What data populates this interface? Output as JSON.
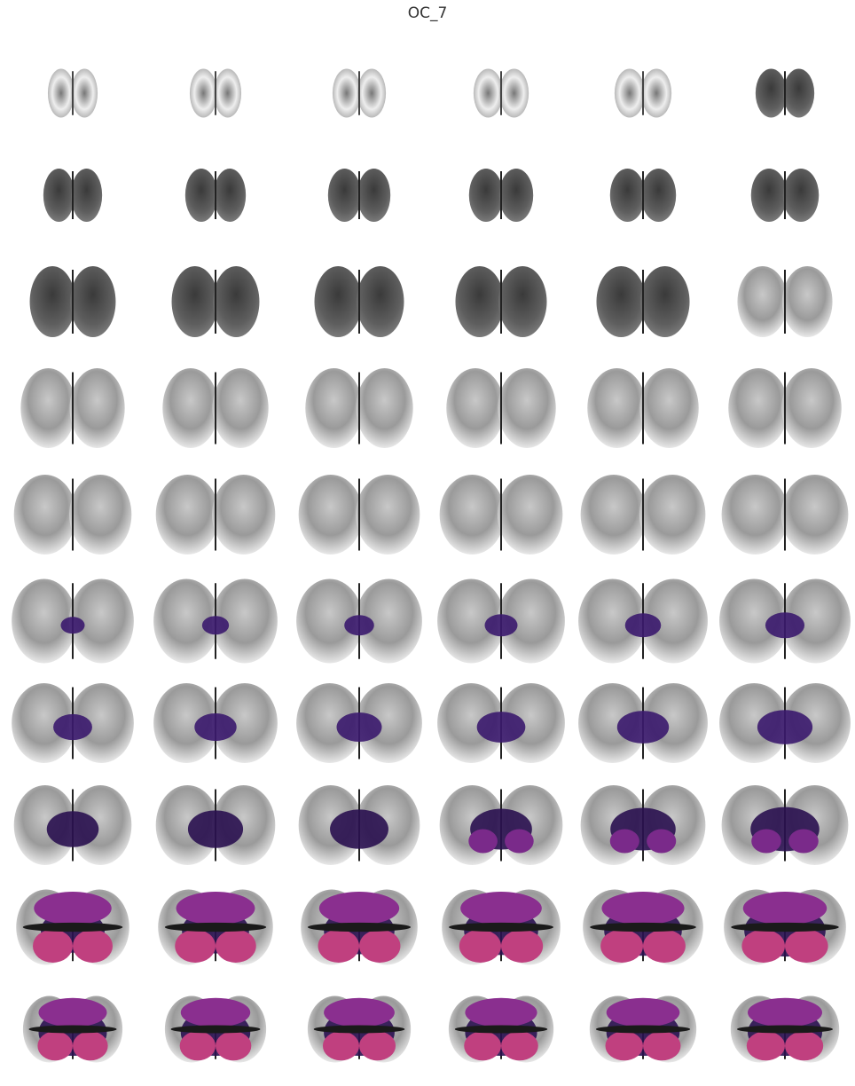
{
  "header": {
    "title": "OC_7"
  }
}
